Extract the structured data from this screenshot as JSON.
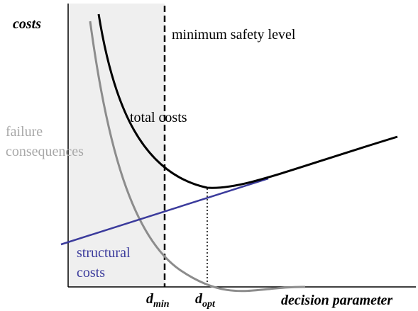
{
  "y_axis_label": "costs",
  "x_axis_label": "decision parameter",
  "curves": {
    "total": {
      "label": "total costs"
    },
    "failure": {
      "label": [
        "failure",
        "consequences"
      ]
    },
    "structural": {
      "label": [
        "structural",
        "costs"
      ]
    }
  },
  "limit_line": {
    "label": "minimum safety level"
  },
  "markers": {
    "d_min": {
      "symbol": "d",
      "subscript": "min"
    },
    "d_opt": {
      "symbol": "d",
      "subscript": "opt"
    }
  }
}
